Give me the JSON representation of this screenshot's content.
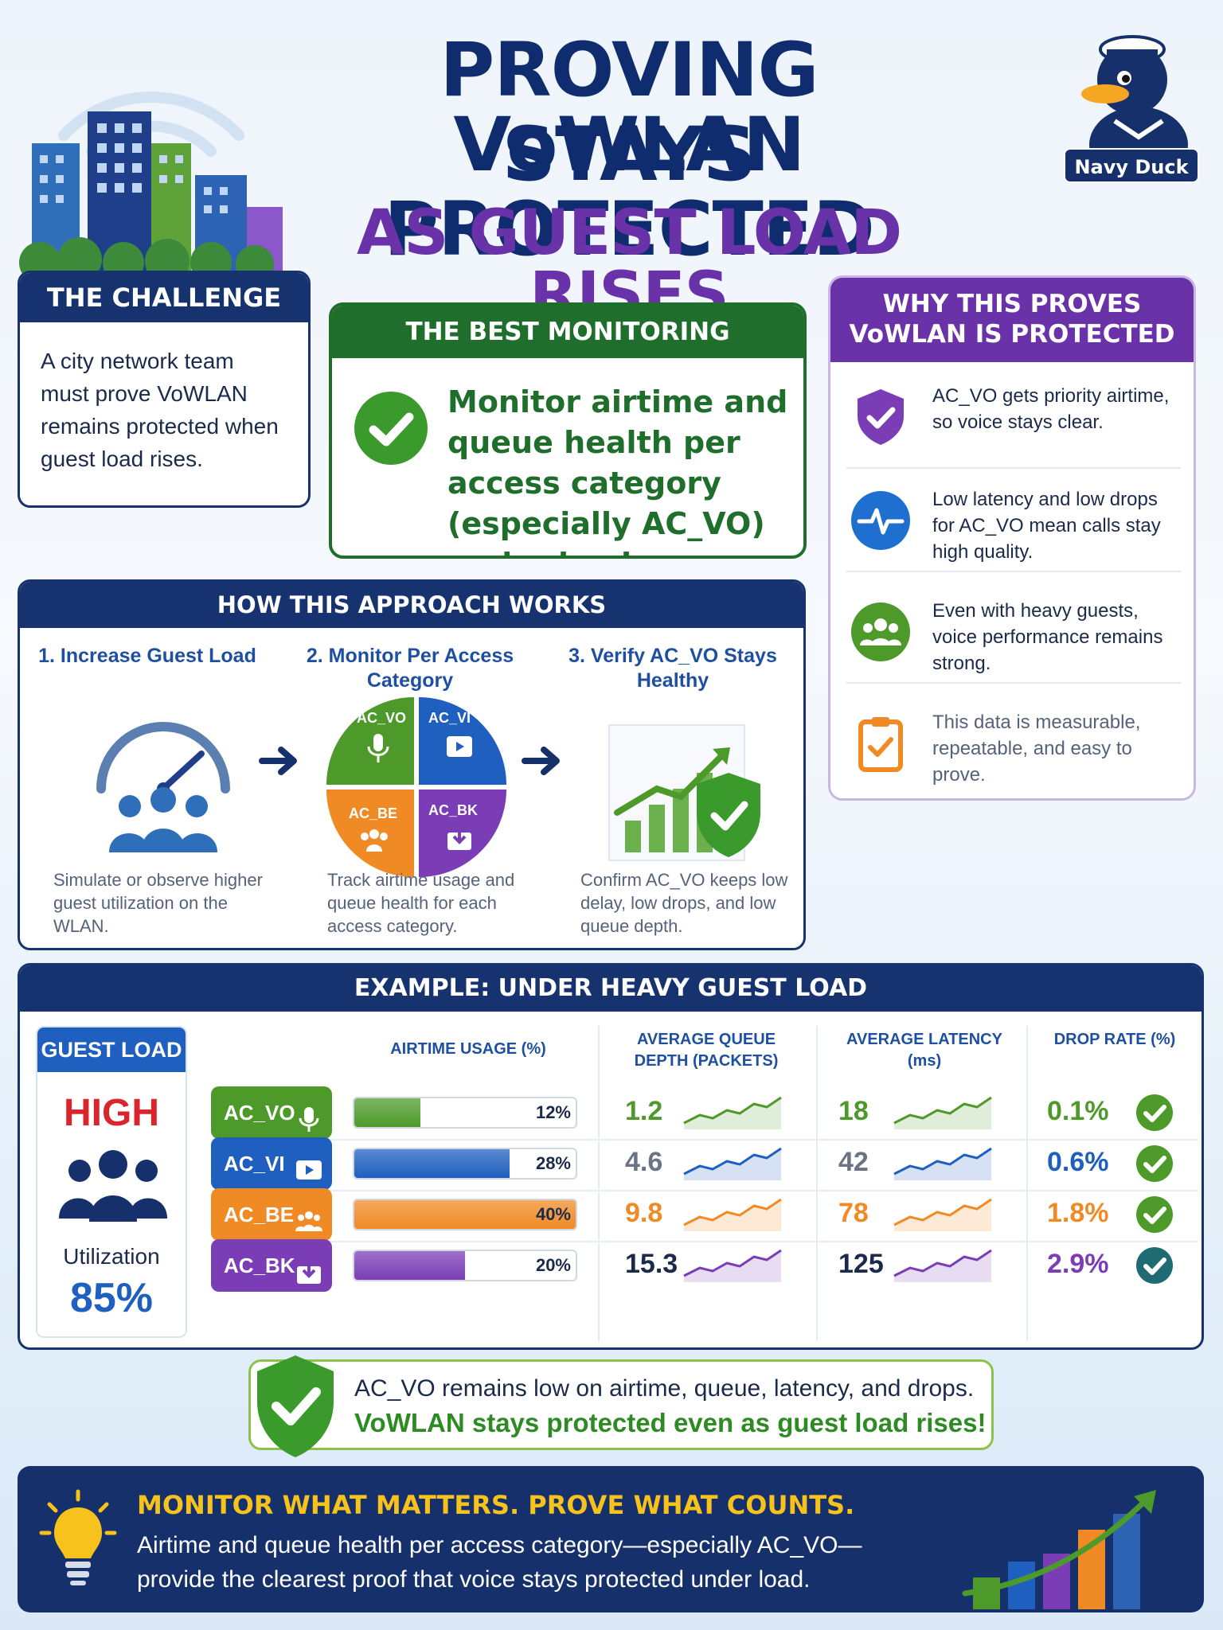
{
  "title": {
    "line1": "PROVING VoWLAN",
    "line2": "STAYS PROTECTED",
    "line3": "AS GUEST LOAD RISES"
  },
  "brand": {
    "name": "Navy Duck"
  },
  "challenge": {
    "heading": "THE CHALLENGE",
    "body": "A city network team must prove VoWLAN remains protected when guest load rises."
  },
  "best": {
    "heading": "THE BEST MONITORING APPROACH",
    "body": "Monitor airtime and queue health per access category (especially AC_VO) under load"
  },
  "why": {
    "heading_line1": "WHY THIS PROVES",
    "heading_line2": "VoWLAN IS PROTECTED",
    "items": [
      {
        "icon": "shield-check-icon",
        "text": "AC_VO gets priority airtime, so voice stays clear."
      },
      {
        "icon": "heartbeat-icon",
        "text": "Low latency and low drops for AC_VO mean calls stay high quality."
      },
      {
        "icon": "group-icon",
        "text": "Even with heavy guests, voice performance remains strong."
      },
      {
        "icon": "clipboard-check-icon",
        "text": "This data is measurable, repeatable, and easy to prove."
      }
    ]
  },
  "how": {
    "heading": "HOW THIS APPROACH WORKS",
    "steps": [
      {
        "title": "1. Increase Guest Load",
        "desc": "Simulate or observe higher guest utilization on the WLAN."
      },
      {
        "title": "2. Monitor Per Access Category",
        "desc": "Track airtime usage and queue health for each access category."
      },
      {
        "title": "3. Verify AC_VO Stays Healthy",
        "desc": "Confirm AC_VO keeps low delay, low drops, and low queue depth."
      }
    ],
    "quadrants": [
      "AC_VO",
      "AC_VI",
      "AC_BE",
      "AC_BK"
    ]
  },
  "example": {
    "heading": "EXAMPLE: UNDER HEAVY GUEST LOAD",
    "guest_load": {
      "label": "GUEST LOAD",
      "level": "HIGH",
      "util_label": "Utilization",
      "util_value": "85%"
    },
    "columns": {
      "airtime": "AIRTIME USAGE (%)",
      "queue": "AVERAGE QUEUE DEPTH (PACKETS)",
      "latency": "AVERAGE LATENCY (ms)",
      "drop": "DROP RATE (%)"
    },
    "rows": [
      {
        "ac": "AC_VO",
        "icon": "microphone-icon",
        "color": "#4d9a2a",
        "airtime": "12%",
        "airtime_frac": 0.12,
        "queue": "1.2",
        "latency": "18",
        "drop": "0.1%"
      },
      {
        "ac": "AC_VI",
        "icon": "video-icon",
        "color": "#1e5fbf",
        "airtime": "28%",
        "airtime_frac": 0.28,
        "queue": "4.6",
        "latency": "42",
        "drop": "0.6%"
      },
      {
        "ac": "AC_BE",
        "icon": "group-icon",
        "color": "#f08a24",
        "airtime": "40%",
        "airtime_frac": 0.4,
        "queue": "9.8",
        "latency": "78",
        "drop": "1.8%"
      },
      {
        "ac": "AC_BK",
        "icon": "download-icon",
        "color": "#7a3db5",
        "airtime": "20%",
        "airtime_frac": 0.2,
        "queue": "15.3",
        "latency": "125",
        "drop": "2.9%"
      }
    ]
  },
  "summary": {
    "line1": "AC_VO remains low on airtime, queue, latency, and drops.",
    "line2": "VoWLAN stays protected even as guest load rises!"
  },
  "footer": {
    "headline": "MONITOR WHAT MATTERS. PROVE WHAT COUNTS.",
    "body": "Airtime and queue health per access category—especially AC_VO—provide the clearest proof that voice stays protected under load."
  },
  "colors": {
    "navy": "#17336f",
    "green": "#1f6e2c",
    "purple": "#6a32a8",
    "blue": "#1e5fbf",
    "orange": "#f08a24",
    "yellow": "#f7c21b"
  }
}
